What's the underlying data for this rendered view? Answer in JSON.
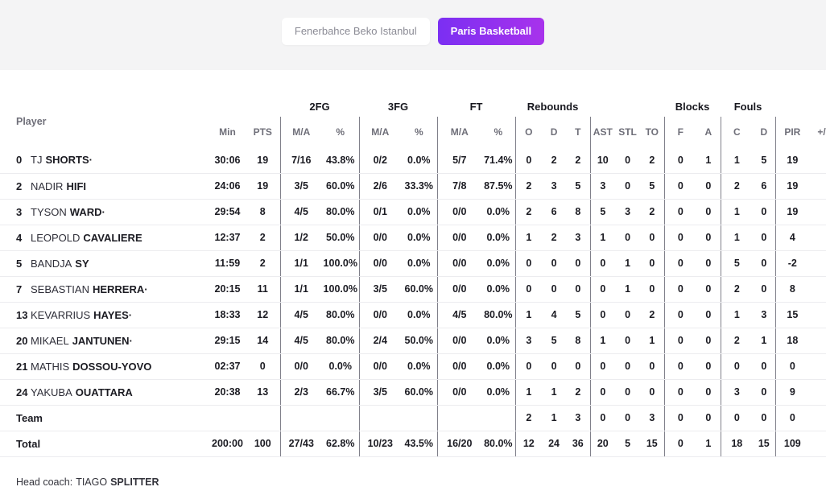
{
  "tabs": {
    "fenerbahce": {
      "label": "Fenerbahce Beko Istanbul",
      "active": false
    },
    "paris": {
      "label": "Paris Basketball",
      "active": true
    }
  },
  "colors": {
    "accent_gradient_from": "#7b2ff2",
    "accent_gradient_to": "#a832ec",
    "tabs_bar_bg": "#f4f4f5"
  },
  "table": {
    "groups": {
      "fg2": "2FG",
      "fg3": "3FG",
      "ft": "FT",
      "rebounds": "Rebounds",
      "blocks": "Blocks",
      "fouls": "Fouls"
    },
    "headers": {
      "player": "Player",
      "min": "Min",
      "pts": "PTS",
      "ma": "M/A",
      "pct": "%",
      "o": "O",
      "d": "D",
      "t": "T",
      "ast": "AST",
      "stl": "STL",
      "to": "TO",
      "f": "F",
      "a": "A",
      "c": "C",
      "pir": "PIR",
      "pm": "+/-"
    },
    "rows": [
      {
        "no": "0",
        "first": "TJ",
        "last": "SHORTS",
        "starter": "·",
        "min": "30:06",
        "pts": "19",
        "fg2_ma": "7/16",
        "fg2_pct": "43.8%",
        "fg3_ma": "0/2",
        "fg3_pct": "0.0%",
        "ft_ma": "5/7",
        "ft_pct": "71.4%",
        "reb_o": "0",
        "reb_d": "2",
        "reb_t": "2",
        "ast": "10",
        "stl": "0",
        "to": "2",
        "blk_f": "0",
        "blk_a": "1",
        "foul_c": "1",
        "foul_d": "5",
        "pir": "19",
        "pm": ""
      },
      {
        "no": "2",
        "first": "NADIR",
        "last": "HIFI",
        "starter": "",
        "min": "24:06",
        "pts": "19",
        "fg2_ma": "3/5",
        "fg2_pct": "60.0%",
        "fg3_ma": "2/6",
        "fg3_pct": "33.3%",
        "ft_ma": "7/8",
        "ft_pct": "87.5%",
        "reb_o": "2",
        "reb_d": "3",
        "reb_t": "5",
        "ast": "3",
        "stl": "0",
        "to": "5",
        "blk_f": "0",
        "blk_a": "0",
        "foul_c": "2",
        "foul_d": "6",
        "pir": "19",
        "pm": ""
      },
      {
        "no": "3",
        "first": "TYSON",
        "last": "WARD",
        "starter": "·",
        "min": "29:54",
        "pts": "8",
        "fg2_ma": "4/5",
        "fg2_pct": "80.0%",
        "fg3_ma": "0/1",
        "fg3_pct": "0.0%",
        "ft_ma": "0/0",
        "ft_pct": "0.0%",
        "reb_o": "2",
        "reb_d": "6",
        "reb_t": "8",
        "ast": "5",
        "stl": "3",
        "to": "2",
        "blk_f": "0",
        "blk_a": "0",
        "foul_c": "1",
        "foul_d": "0",
        "pir": "19",
        "pm": ""
      },
      {
        "no": "4",
        "first": "LEOPOLD",
        "last": "CAVALIERE",
        "starter": "",
        "min": "12:37",
        "pts": "2",
        "fg2_ma": "1/2",
        "fg2_pct": "50.0%",
        "fg3_ma": "0/0",
        "fg3_pct": "0.0%",
        "ft_ma": "0/0",
        "ft_pct": "0.0%",
        "reb_o": "1",
        "reb_d": "2",
        "reb_t": "3",
        "ast": "1",
        "stl": "0",
        "to": "0",
        "blk_f": "0",
        "blk_a": "0",
        "foul_c": "1",
        "foul_d": "0",
        "pir": "4",
        "pm": ""
      },
      {
        "no": "5",
        "first": "BANDJA",
        "last": "SY",
        "starter": "",
        "min": "11:59",
        "pts": "2",
        "fg2_ma": "1/1",
        "fg2_pct": "100.0%",
        "fg3_ma": "0/0",
        "fg3_pct": "0.0%",
        "ft_ma": "0/0",
        "ft_pct": "0.0%",
        "reb_o": "0",
        "reb_d": "0",
        "reb_t": "0",
        "ast": "0",
        "stl": "1",
        "to": "0",
        "blk_f": "0",
        "blk_a": "0",
        "foul_c": "5",
        "foul_d": "0",
        "pir": "-2",
        "pm": ""
      },
      {
        "no": "7",
        "first": "SEBASTIAN",
        "last": "HERRERA",
        "starter": "·",
        "min": "20:15",
        "pts": "11",
        "fg2_ma": "1/1",
        "fg2_pct": "100.0%",
        "fg3_ma": "3/5",
        "fg3_pct": "60.0%",
        "ft_ma": "0/0",
        "ft_pct": "0.0%",
        "reb_o": "0",
        "reb_d": "0",
        "reb_t": "0",
        "ast": "0",
        "stl": "1",
        "to": "0",
        "blk_f": "0",
        "blk_a": "0",
        "foul_c": "2",
        "foul_d": "0",
        "pir": "8",
        "pm": ""
      },
      {
        "no": "13",
        "first": "KEVARRIUS",
        "last": "HAYES",
        "starter": "·",
        "min": "18:33",
        "pts": "12",
        "fg2_ma": "4/5",
        "fg2_pct": "80.0%",
        "fg3_ma": "0/0",
        "fg3_pct": "0.0%",
        "ft_ma": "4/5",
        "ft_pct": "80.0%",
        "reb_o": "1",
        "reb_d": "4",
        "reb_t": "5",
        "ast": "0",
        "stl": "0",
        "to": "2",
        "blk_f": "0",
        "blk_a": "0",
        "foul_c": "1",
        "foul_d": "3",
        "pir": "15",
        "pm": ""
      },
      {
        "no": "20",
        "first": "MIKAEL",
        "last": "JANTUNEN",
        "starter": "·",
        "min": "29:15",
        "pts": "14",
        "fg2_ma": "4/5",
        "fg2_pct": "80.0%",
        "fg3_ma": "2/4",
        "fg3_pct": "50.0%",
        "ft_ma": "0/0",
        "ft_pct": "0.0%",
        "reb_o": "3",
        "reb_d": "5",
        "reb_t": "8",
        "ast": "1",
        "stl": "0",
        "to": "1",
        "blk_f": "0",
        "blk_a": "0",
        "foul_c": "2",
        "foul_d": "1",
        "pir": "18",
        "pm": ""
      },
      {
        "no": "21",
        "first": "MATHIS",
        "last": "DOSSOU-YOVO",
        "starter": "",
        "min": "02:37",
        "pts": "0",
        "fg2_ma": "0/0",
        "fg2_pct": "0.0%",
        "fg3_ma": "0/0",
        "fg3_pct": "0.0%",
        "ft_ma": "0/0",
        "ft_pct": "0.0%",
        "reb_o": "0",
        "reb_d": "0",
        "reb_t": "0",
        "ast": "0",
        "stl": "0",
        "to": "0",
        "blk_f": "0",
        "blk_a": "0",
        "foul_c": "0",
        "foul_d": "0",
        "pir": "0",
        "pm": ""
      },
      {
        "no": "24",
        "first": "YAKUBA",
        "last": "OUATTARA",
        "starter": "",
        "min": "20:38",
        "pts": "13",
        "fg2_ma": "2/3",
        "fg2_pct": "66.7%",
        "fg3_ma": "3/5",
        "fg3_pct": "60.0%",
        "ft_ma": "0/0",
        "ft_pct": "0.0%",
        "reb_o": "1",
        "reb_d": "1",
        "reb_t": "2",
        "ast": "0",
        "stl": "0",
        "to": "0",
        "blk_f": "0",
        "blk_a": "0",
        "foul_c": "3",
        "foul_d": "0",
        "pir": "9",
        "pm": ""
      },
      {
        "label": "Team",
        "min": "",
        "pts": "",
        "fg2_ma": "",
        "fg2_pct": "",
        "fg3_ma": "",
        "fg3_pct": "",
        "ft_ma": "",
        "ft_pct": "",
        "reb_o": "2",
        "reb_d": "1",
        "reb_t": "3",
        "ast": "0",
        "stl": "0",
        "to": "3",
        "blk_f": "0",
        "blk_a": "0",
        "foul_c": "0",
        "foul_d": "0",
        "pir": "0",
        "pm": ""
      },
      {
        "label": "Total",
        "min": "200:00",
        "pts": "100",
        "fg2_ma": "27/43",
        "fg2_pct": "62.8%",
        "fg3_ma": "10/23",
        "fg3_pct": "43.5%",
        "ft_ma": "16/20",
        "ft_pct": "80.0%",
        "reb_o": "12",
        "reb_d": "24",
        "reb_t": "36",
        "ast": "20",
        "stl": "5",
        "to": "15",
        "blk_f": "0",
        "blk_a": "1",
        "foul_c": "18",
        "foul_d": "15",
        "pir": "109",
        "pm": ""
      }
    ]
  },
  "footer": {
    "label": "Head coach:",
    "coach_first": "TIAGO",
    "coach_last": "SPLITTER"
  }
}
